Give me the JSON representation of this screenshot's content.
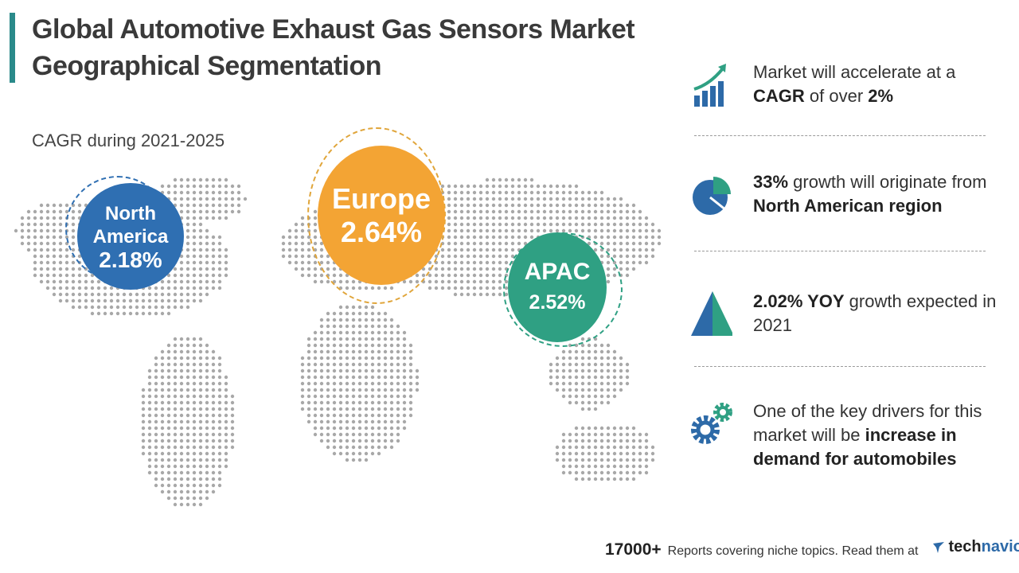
{
  "header": {
    "title_line1": "Global Automotive Exhaust Gas Sensors Market",
    "title_line2": "Geographical Segmentation",
    "cagr_label": "CAGR during 2021-2025"
  },
  "regions": [
    {
      "name_line1": "North",
      "name_line2": "America",
      "cagr": "2.18%",
      "color": "#2f6fb2"
    },
    {
      "name": "Europe",
      "cagr": "2.64%",
      "color": "#f3a434"
    },
    {
      "name": "APAC",
      "cagr": "2.52%",
      "color": "#2fa083"
    }
  ],
  "highlights": [
    {
      "icon": "growth-chart-icon",
      "pre": "Market will accelerate at a ",
      "bold1": "CAGR",
      "mid": " of over ",
      "bold2": "2%"
    },
    {
      "icon": "pie-chart-icon",
      "bold1": "33%",
      "mid": " growth will originate from ",
      "bold2": "North American region"
    },
    {
      "icon": "triangle-icon",
      "bold1": "2.02% YOY",
      "mid": " growth expected in 2021"
    },
    {
      "icon": "gears-icon",
      "pre": "One of the key drivers for this market will be ",
      "bold1": "increase in demand for automobiles"
    }
  ],
  "footer": {
    "count": "17000+",
    "text": "Reports covering niche topics. Read them at",
    "brand_a": "tech",
    "brand_b": "navio"
  }
}
